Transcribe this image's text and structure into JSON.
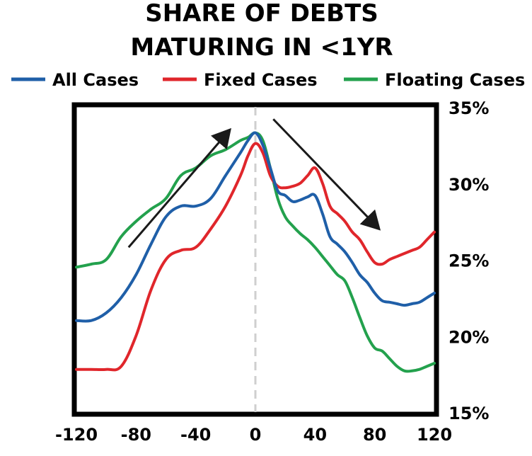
{
  "chart_data": {
    "type": "line",
    "title": [
      "SHARE OF DEBTS",
      "MATURING IN <1YR"
    ],
    "xlabel": "",
    "ylabel": "",
    "xlim": [
      -120,
      120
    ],
    "ylim": [
      15,
      35
    ],
    "y_axis_side": "right",
    "x_ticks": [
      -120,
      -80,
      -40,
      0,
      40,
      80,
      120
    ],
    "y_ticks": [
      15,
      20,
      25,
      30,
      35
    ],
    "y_tick_labels": [
      "15%",
      "20%",
      "25%",
      "30%",
      "35%"
    ],
    "x_tick_labels": [
      "-120",
      "-80",
      "-40",
      "0",
      "40",
      "80",
      "120"
    ],
    "legend_placement": "top",
    "grid": false,
    "reference_line_x": 0,
    "x": [
      -120,
      -110,
      -100,
      -90,
      -80,
      -70,
      -60,
      -50,
      -40,
      -30,
      -20,
      -10,
      -5,
      0,
      5,
      10,
      15,
      20,
      25,
      30,
      35,
      40,
      45,
      50,
      55,
      60,
      65,
      70,
      75,
      80,
      85,
      90,
      95,
      100,
      105,
      110,
      115,
      120
    ],
    "series": [
      {
        "name": "All Cases",
        "color": "#1f5fa8",
        "values": [
          21.0,
          21.0,
          21.5,
          22.5,
          24.0,
          26.0,
          27.8,
          28.5,
          28.5,
          29.0,
          30.5,
          32.0,
          32.8,
          33.3,
          32.5,
          31.0,
          29.5,
          29.2,
          28.8,
          28.9,
          29.1,
          29.2,
          28.0,
          26.5,
          26.0,
          25.5,
          24.8,
          24.0,
          23.5,
          22.8,
          22.3,
          22.2,
          22.1,
          22.0,
          22.1,
          22.2,
          22.5,
          22.8
        ]
      },
      {
        "name": "Fixed Cases",
        "color": "#e0262b",
        "values": [
          17.8,
          17.8,
          17.8,
          18.0,
          20.0,
          23.0,
          25.0,
          25.6,
          25.8,
          27.0,
          28.5,
          30.5,
          31.8,
          32.6,
          32.0,
          30.5,
          29.8,
          29.7,
          29.8,
          30.0,
          30.5,
          31.0,
          30.0,
          28.5,
          28.0,
          27.5,
          26.8,
          26.3,
          25.5,
          24.8,
          24.7,
          25.0,
          25.2,
          25.4,
          25.6,
          25.8,
          26.3,
          26.8
        ]
      },
      {
        "name": "Floating Cases",
        "color": "#23a14d",
        "values": [
          24.5,
          24.7,
          25.0,
          26.5,
          27.5,
          28.3,
          29.0,
          30.5,
          31.0,
          31.8,
          32.2,
          32.8,
          33.0,
          33.3,
          32.8,
          31.0,
          29.0,
          27.8,
          27.2,
          26.7,
          26.3,
          25.8,
          25.2,
          24.6,
          24.0,
          23.6,
          22.5,
          21.2,
          20.0,
          19.2,
          19.0,
          18.5,
          18.0,
          17.7,
          17.7,
          17.8,
          18.0,
          18.2
        ]
      }
    ],
    "annotations": [
      {
        "type": "arrow",
        "from": [
          -85,
          25.8
        ],
        "to": [
          -18,
          33.4
        ],
        "color": "#1a1a1a"
      },
      {
        "type": "arrow",
        "from": [
          12,
          34.2
        ],
        "to": [
          82,
          27.1
        ],
        "color": "#1a1a1a"
      }
    ]
  }
}
